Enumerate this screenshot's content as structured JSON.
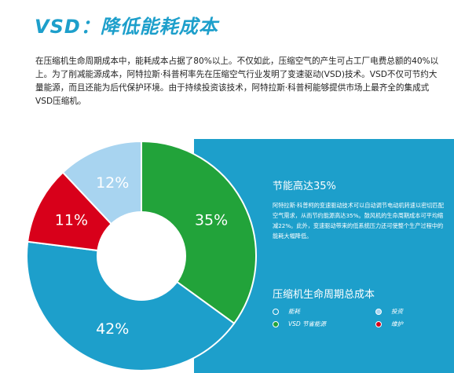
{
  "title": "VSD：降低能耗成本",
  "intro": "在压缩机生命周期成本中，能耗成本占据了80%以上。不仅如此，压缩空气的产生可占工厂电费总额的40%以上。为了削减能源成本，阿特拉斯·科普柯率先在压缩空气行业发明了变速驱动(VSD)技术。VSD不仅可节约大量能源，而且还能为后代保护环境。由于持续投资该技术，阿特拉斯·科普柯能够提供市场上最齐全的集成式VSD压缩机。",
  "panel": {
    "heading": "节能高达35%",
    "text": "阿特拉斯·科普柯的变速驱动技术可以自动调节电动机转速以密切匹配空气需求，从而节约能源高达35%。鼓风机的生命周期成本可平均缩减22%。此外，变速驱动带来的低系统压力还可使整个生产过程中的能耗大幅降低。",
    "heading2": "压缩机生命周期总成本"
  },
  "legend": [
    {
      "label": "能耗",
      "color": "#1d9fcb"
    },
    {
      "label": "投资",
      "color": "#a8d4f0"
    },
    {
      "label": "VSD 节省能源",
      "color": "#22a33a"
    },
    {
      "label": "维护",
      "color": "#d8001a"
    }
  ],
  "chart_data": {
    "type": "pie",
    "title": "压缩机生命周期总成本",
    "slices": [
      {
        "name": "VSD 节省能源",
        "value": 35,
        "label": "35%",
        "color": "#22a33a"
      },
      {
        "name": "能耗",
        "value": 42,
        "label": "42%",
        "color": "#1d9fcb"
      },
      {
        "name": "维护",
        "value": 11,
        "label": "11%",
        "color": "#d8001a"
      },
      {
        "name": "投资",
        "value": 12,
        "label": "12%",
        "color": "#a8d4f0"
      }
    ],
    "start_angle_deg": 0,
    "direction": "clockwise",
    "donut_hole": true
  }
}
